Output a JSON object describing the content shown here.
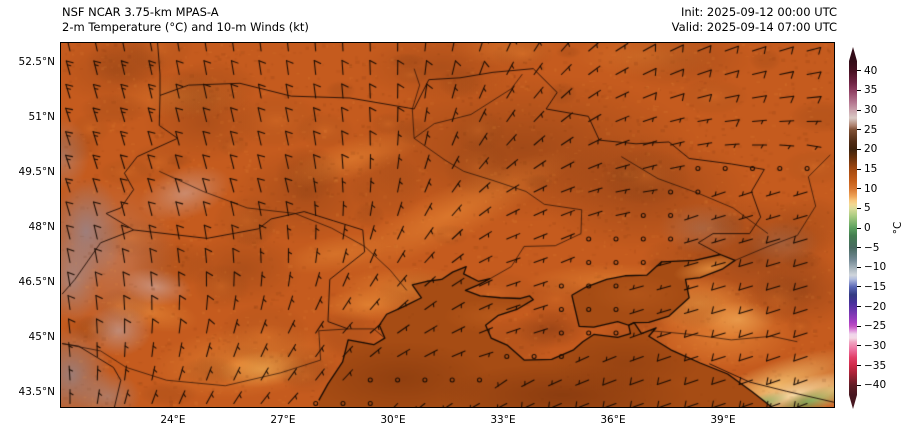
{
  "header": {
    "title_line1": "NSF NCAR 3.75-km MPAS-A",
    "title_line2": "2-m Temperature (°C) and 10-m Winds (kt)",
    "init_label": "Init: 2025-09-12 00:00 UTC",
    "valid_label": "Valid: 2025-09-14 07:00 UTC"
  },
  "map": {
    "extent": {
      "lon_min": 20.92,
      "lon_max": 42.0,
      "lat_min": 43.12,
      "lat_max": 53.05
    },
    "x_ticks": [
      {
        "lon": 24,
        "label": "24°E"
      },
      {
        "lon": 27,
        "label": "27°E"
      },
      {
        "lon": 30,
        "label": "30°E"
      },
      {
        "lon": 33,
        "label": "33°E"
      },
      {
        "lon": 36,
        "label": "36°E"
      },
      {
        "lon": 39,
        "label": "39°E"
      }
    ],
    "y_ticks": [
      {
        "lat": 52.5,
        "label": "52.5°N"
      },
      {
        "lat": 51.0,
        "label": "51°N"
      },
      {
        "lat": 49.5,
        "label": "49.5°N"
      },
      {
        "lat": 48.0,
        "label": "48°N"
      },
      {
        "lat": 46.5,
        "label": "46.5°N"
      },
      {
        "lat": 45.0,
        "label": "45°N"
      },
      {
        "lat": 43.5,
        "label": "43.5°N"
      }
    ],
    "land_color": "#c55b1e",
    "sea_color": "#a64c14",
    "coast_color": "#140a04",
    "border_color": "#1e0c05",
    "barb_color": "#190c04"
  },
  "colorbar": {
    "unit": "°C",
    "vmax": 42.5,
    "vmin": -42.5,
    "tick_values": [
      40,
      35,
      30,
      25,
      20,
      15,
      10,
      5,
      0,
      -5,
      -10,
      -15,
      -20,
      -25,
      -30,
      -35,
      -40
    ],
    "tick_labels": [
      "40",
      "35",
      "30",
      "25",
      "20",
      "15",
      "10",
      "5",
      "0",
      "−5",
      "−10",
      "−15",
      "−20",
      "−25",
      "−30",
      "−35",
      "−40"
    ],
    "stops": [
      {
        "v": 42.5,
        "c": "#330d18"
      },
      {
        "v": 40,
        "c": "#471021"
      },
      {
        "v": 37,
        "c": "#6f2343"
      },
      {
        "v": 35,
        "c": "#8d3d60"
      },
      {
        "v": 32,
        "c": "#b4758f"
      },
      {
        "v": 30,
        "c": "#c9a0ab"
      },
      {
        "v": 28,
        "c": "#d9c9c4"
      },
      {
        "v": 26,
        "c": "#ab7f6b"
      },
      {
        "v": 25,
        "c": "#7e4f34"
      },
      {
        "v": 22,
        "c": "#512c15"
      },
      {
        "v": 20,
        "c": "#3e220c"
      },
      {
        "v": 18,
        "c": "#65300b"
      },
      {
        "v": 15,
        "c": "#a3480f"
      },
      {
        "v": 12,
        "c": "#c65f1a"
      },
      {
        "v": 10,
        "c": "#d87630"
      },
      {
        "v": 8,
        "c": "#efa558"
      },
      {
        "v": 7,
        "c": "#f7c67c"
      },
      {
        "v": 6,
        "c": "#f3d892"
      },
      {
        "v": 5,
        "c": "#dcdc9a"
      },
      {
        "v": 3,
        "c": "#a8cb81"
      },
      {
        "v": 0,
        "c": "#5ba15e"
      },
      {
        "v": -2,
        "c": "#437d50"
      },
      {
        "v": -5,
        "c": "#486a60"
      },
      {
        "v": -8,
        "c": "#728893"
      },
      {
        "v": -11,
        "c": "#b9c3ca"
      },
      {
        "v": -12,
        "c": "#cfd5db"
      },
      {
        "v": -13,
        "c": "#b3bede"
      },
      {
        "v": -15,
        "c": "#5a67b6"
      },
      {
        "v": -17,
        "c": "#343b82"
      },
      {
        "v": -19,
        "c": "#46309a"
      },
      {
        "v": -21,
        "c": "#6b35ad"
      },
      {
        "v": -24,
        "c": "#a83ec3"
      },
      {
        "v": -25,
        "c": "#c150c2"
      },
      {
        "v": -26,
        "c": "#dd8cd9"
      },
      {
        "v": -27,
        "c": "#efd4eb"
      },
      {
        "v": -28,
        "c": "#f3d9e6"
      },
      {
        "v": -29,
        "c": "#f0a6c2"
      },
      {
        "v": -31,
        "c": "#ec6f9d"
      },
      {
        "v": -33,
        "c": "#e13e66"
      },
      {
        "v": -35,
        "c": "#cf2a49"
      },
      {
        "v": -37,
        "c": "#a92237"
      },
      {
        "v": -40,
        "c": "#611d26"
      },
      {
        "v": -42.5,
        "c": "#471720"
      }
    ]
  },
  "wind_grid": {
    "lons": [
      21,
      24,
      27,
      30,
      33,
      36,
      39,
      42
    ],
    "lats": [
      53,
      51,
      49,
      47,
      45,
      43
    ],
    "uv": [
      [
        [
          3,
          -13
        ],
        [
          2,
          -12
        ],
        [
          1,
          -10
        ],
        [
          0,
          -9
        ],
        [
          -3,
          -7
        ],
        [
          -6,
          -4
        ],
        [
          -8,
          -3
        ],
        [
          -8,
          -2
        ]
      ],
      [
        [
          5,
          -15
        ],
        [
          3,
          -12
        ],
        [
          2,
          -10
        ],
        [
          0,
          -8
        ],
        [
          -4,
          -6
        ],
        [
          -7,
          -3
        ],
        [
          -8,
          -1
        ],
        [
          -8,
          0
        ]
      ],
      [
        [
          4,
          -12
        ],
        [
          3,
          -10
        ],
        [
          2,
          -8
        ],
        [
          -1,
          -6
        ],
        [
          -5,
          -3
        ],
        [
          -5,
          -1
        ],
        [
          3,
          1
        ],
        [
          7,
          2
        ]
      ],
      [
        [
          2,
          -10
        ],
        [
          1,
          -9
        ],
        [
          0,
          -7
        ],
        [
          -3,
          -5
        ],
        [
          -6,
          -2
        ],
        [
          1,
          0
        ],
        [
          7,
          2
        ],
        [
          10,
          3
        ]
      ],
      [
        [
          1,
          -9
        ],
        [
          -1,
          -8
        ],
        [
          -3,
          -6
        ],
        [
          -6,
          -4
        ],
        [
          -6,
          -2
        ],
        [
          2,
          1
        ],
        [
          10,
          3
        ],
        [
          12,
          4
        ]
      ],
      [
        [
          0,
          -2
        ],
        [
          -2,
          -4
        ],
        [
          -3,
          -3
        ],
        [
          3,
          3
        ],
        [
          8,
          4
        ],
        [
          11,
          4
        ],
        [
          12,
          4
        ],
        [
          13,
          5
        ]
      ]
    ]
  }
}
